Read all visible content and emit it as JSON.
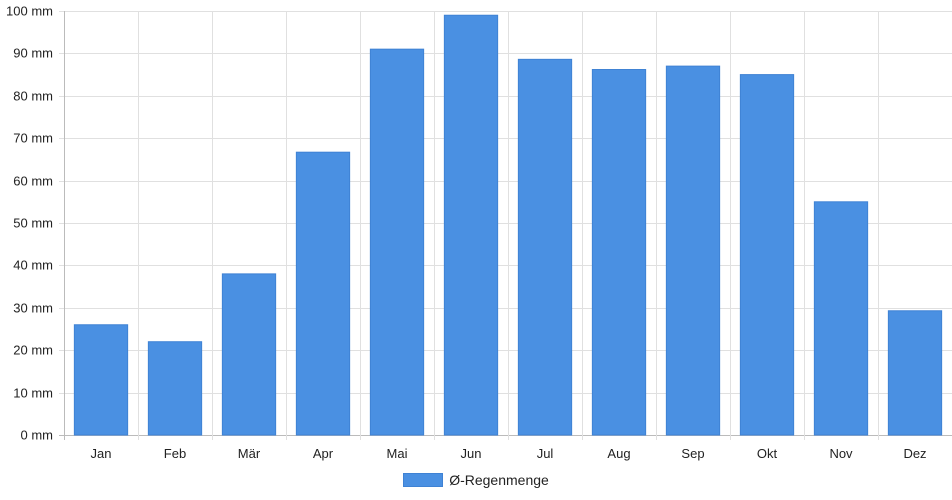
{
  "chart_data": {
    "type": "bar",
    "categories": [
      "Jan",
      "Feb",
      "Mär",
      "Apr",
      "Mai",
      "Jun",
      "Jul",
      "Aug",
      "Sep",
      "Okt",
      "Nov",
      "Dez"
    ],
    "series": [
      {
        "name": "Ø-Regenmenge",
        "values": [
          26,
          22,
          38,
          66.7,
          91,
          99,
          88.6,
          86.2,
          87,
          85,
          55,
          29.3
        ]
      }
    ],
    "ylim": [
      0,
      100
    ],
    "y_ticks": [
      "0 mm",
      "10 mm",
      "20 mm",
      "30 mm",
      "40 mm",
      "50 mm",
      "60 mm",
      "70 mm",
      "80 mm",
      "90 mm",
      "100 mm"
    ],
    "y_tick_values": [
      0,
      10,
      20,
      30,
      40,
      50,
      60,
      70,
      80,
      90,
      100
    ],
    "unit": "mm",
    "grid": true,
    "legend_position": "bottom",
    "colors": {
      "bar": "#4a90e2",
      "bar_border": "#3f82d4",
      "grid": "#e0e0e0",
      "axis": "#bbbbbb"
    }
  }
}
